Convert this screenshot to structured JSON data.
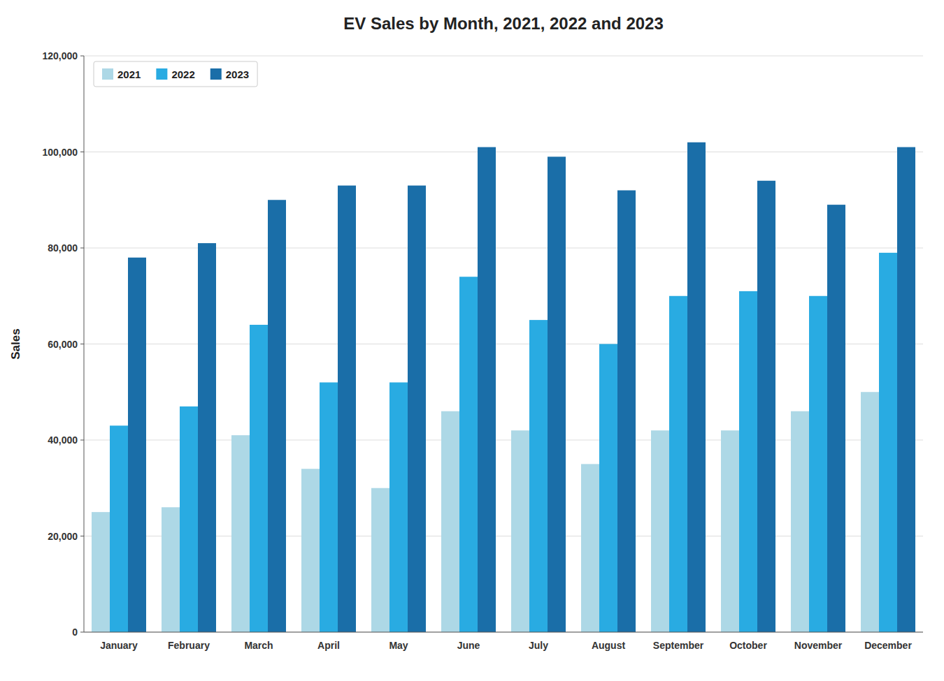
{
  "chart_data": {
    "type": "bar",
    "title": "EV Sales by Month, 2021, 2022 and 2023",
    "ylabel": "Sales",
    "categories": [
      "January",
      "February",
      "March",
      "April",
      "May",
      "June",
      "July",
      "August",
      "September",
      "October",
      "November",
      "December"
    ],
    "series": [
      {
        "name": "2021",
        "color": "#add8e6",
        "values": [
          25000,
          26000,
          41000,
          34000,
          30000,
          46000,
          42000,
          35000,
          42000,
          42000,
          46000,
          50000
        ]
      },
      {
        "name": "2022",
        "color": "#29abe2",
        "values": [
          43000,
          47000,
          64000,
          52000,
          52000,
          74000,
          65000,
          60000,
          70000,
          71000,
          70000,
          79000
        ]
      },
      {
        "name": "2023",
        "color": "#1a6ea8",
        "values": [
          78000,
          81000,
          90000,
          93000,
          93000,
          101000,
          99000,
          92000,
          102000,
          94000,
          89000,
          101000
        ]
      }
    ],
    "ylim": [
      0,
      120000
    ],
    "yticks": [
      0,
      {
        "value": 20000,
        "label": "20,000"
      },
      {
        "value": 40000,
        "label": "40,000"
      },
      {
        "value": 60000,
        "label": "60,000"
      },
      {
        "value": 80000,
        "label": "80,000"
      },
      {
        "value": 100000,
        "label": "100,000"
      },
      {
        "value": 120000,
        "label": "120,000"
      }
    ],
    "grid": true,
    "legend": "upper-left"
  }
}
